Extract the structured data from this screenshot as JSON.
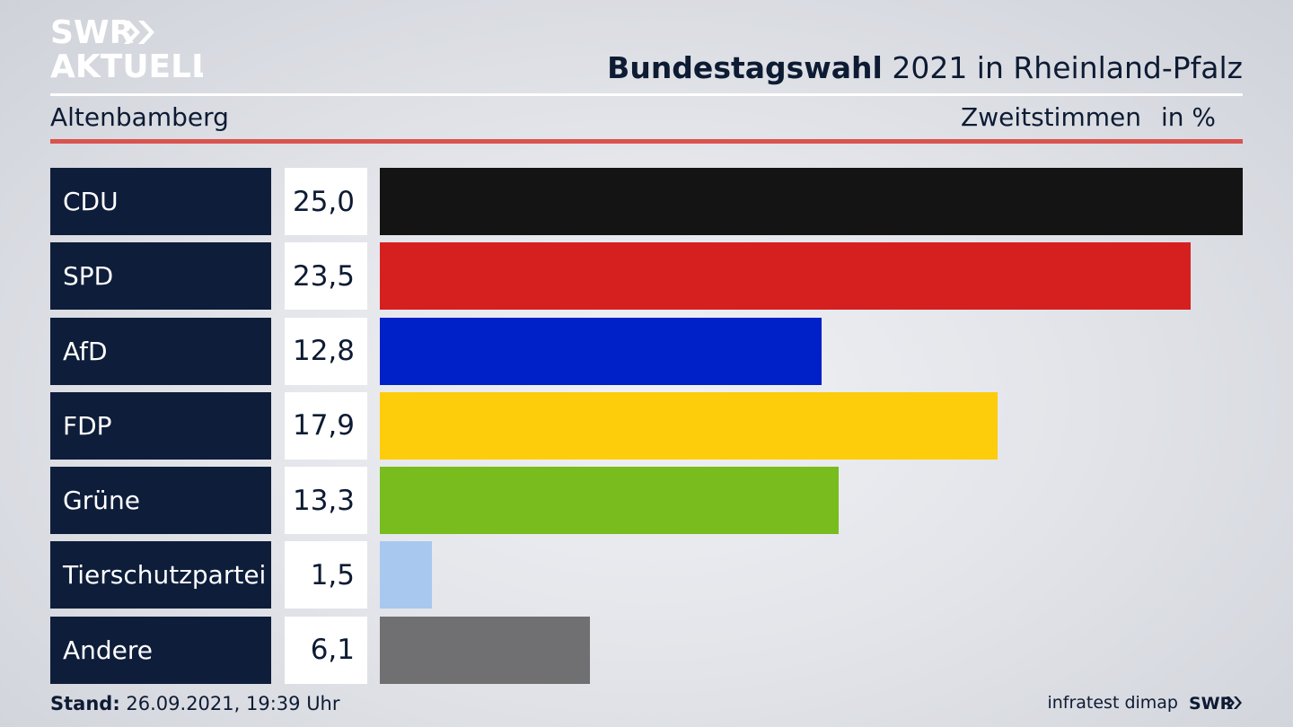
{
  "header": {
    "logo_line1": "SWR",
    "logo_line2": "AKTUELL",
    "title_bold": "Bundestagswahl",
    "title_rest": "2021 in Rheinland-Pfalz",
    "region": "Altenbamberg",
    "metric": "Zweitstimmen",
    "unit": "in %"
  },
  "chart_data": {
    "type": "bar",
    "orientation": "horizontal",
    "categories": [
      "CDU",
      "SPD",
      "AfD",
      "FDP",
      "Grüne",
      "Tierschutzpartei",
      "Andere"
    ],
    "values": [
      25.0,
      23.5,
      12.8,
      17.9,
      13.3,
      1.5,
      6.1
    ],
    "value_labels": [
      "25,0",
      "23,5",
      "12,8",
      "17,9",
      "13,3",
      "1,5",
      "6,1"
    ],
    "colors": [
      "#141414",
      "#d62020",
      "#0021c8",
      "#fdcc0a",
      "#78bc1e",
      "#a8c8f0",
      "#707072"
    ],
    "xlim": [
      0,
      25.0
    ],
    "title": "Bundestagswahl 2021 in Rheinland-Pfalz",
    "subtitle": "Altenbamberg",
    "ylabel": "",
    "xlabel": "",
    "grid": false
  },
  "footer": {
    "stand_label": "Stand:",
    "stand_value": "26.09.2021, 19:39 Uhr",
    "source": "infratest dimap",
    "brand": "SWR"
  },
  "colors": {
    "navy": "#0e1d3a",
    "accent": "#d9534f"
  },
  "icons": {
    "logo": "swr-aktuell-logo",
    "brand": "swr-logo"
  }
}
